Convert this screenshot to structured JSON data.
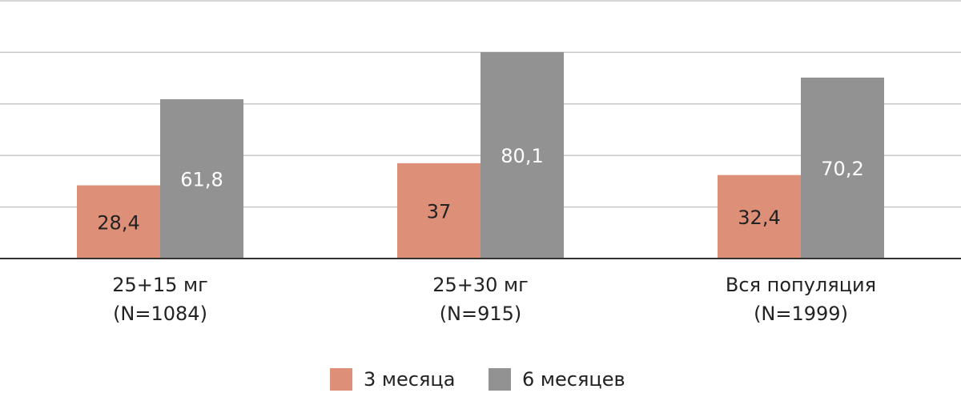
{
  "chart_data": {
    "type": "bar",
    "categories": [
      [
        "25+15 мг",
        "(N=1084)"
      ],
      [
        "25+30 мг",
        "(N=915)"
      ],
      [
        "Вся популяция",
        "(N=1999)"
      ]
    ],
    "series": [
      {
        "name": "3 месяца",
        "color": "#de8f78",
        "values": [
          28.4,
          37,
          32.4
        ],
        "value_labels": [
          "28,4",
          "37",
          "32,4"
        ]
      },
      {
        "name": "6 месяцев",
        "color": "#929292",
        "values": [
          61.8,
          80.1,
          70.2
        ],
        "value_labels": [
          "61,8",
          "80,1",
          "70,2"
        ]
      }
    ],
    "ylim": [
      0,
      100
    ],
    "yticks": [
      0,
      20,
      40,
      60,
      80,
      100
    ],
    "grid": true
  }
}
